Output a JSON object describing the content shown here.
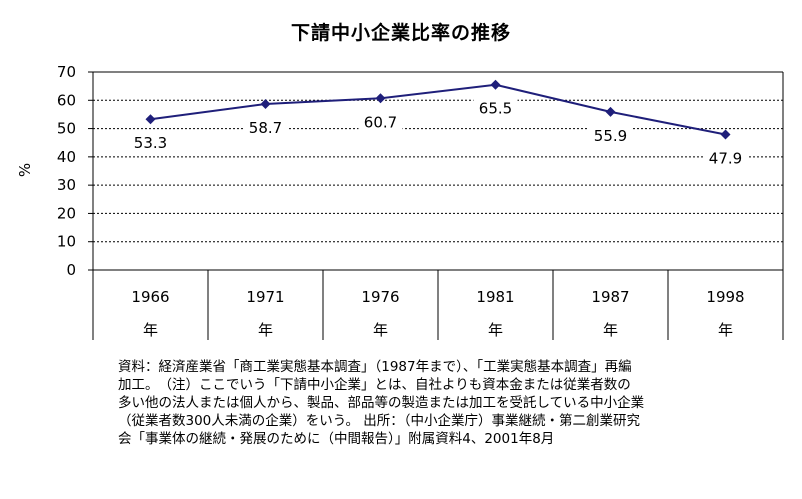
{
  "chart_data": {
    "type": "line",
    "title": "下請中小企業比率の推移",
    "xlabel": "",
    "ylabel": "%",
    "categories": [
      "1966年",
      "1971年",
      "1976年",
      "1981年",
      "1987年",
      "1998年"
    ],
    "category_years": [
      "1966",
      "1971",
      "1976",
      "1981",
      "1987",
      "1998"
    ],
    "category_suffix": "年",
    "series": [
      {
        "values": [
          53.3,
          58.7,
          60.7,
          65.5,
          55.9,
          47.9
        ]
      }
    ],
    "data_labels": [
      "53.3",
      "58.7",
      "60.7",
      "65.5",
      "55.9",
      "47.9"
    ],
    "ylim": [
      0,
      70
    ],
    "yticks": [
      0,
      10,
      20,
      30,
      40,
      50,
      60,
      70
    ],
    "ytick_labels": [
      "0",
      "10",
      "20",
      "30",
      "40",
      "50",
      "60",
      "70"
    ],
    "grid": "horizontal dashed",
    "legend": "none",
    "series_color": "#1f1f7a",
    "marker": "diamond"
  },
  "source_note": [
    "資料：経済産業省「商工業実態基本調査」（1987年まで）、「工業実態基本調査」再編",
    "加工。　（注）ここでいう「下請中小企業」とは、自社よりも資本金または従業者数の",
    "多い他の法人または個人から、製品、部品等の製造または加工を受託している中小企業",
    "（従業者数300人未満の企業）をいう。 出所：（中小企業庁）事業継続・第二創業研究",
    "会「事業体の継続・発展のために（中間報告）」附属資料4、2001年8月"
  ]
}
